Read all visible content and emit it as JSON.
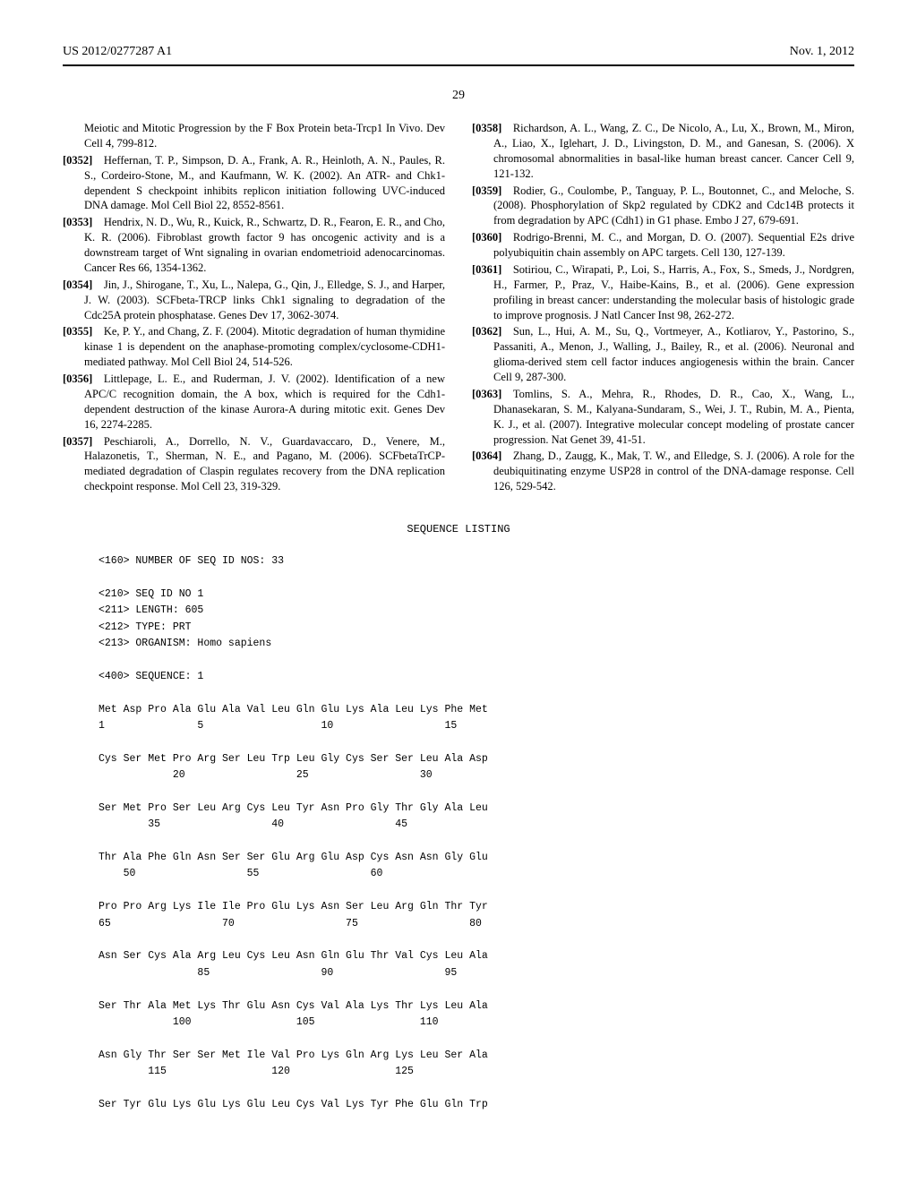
{
  "header": {
    "pub_number": "US 2012/0277287 A1",
    "date": "Nov. 1, 2012"
  },
  "page_number": "29",
  "left_column": [
    {
      "prefix": "",
      "num": "",
      "text": "Meiotic and Mitotic Progression by the F Box Protein beta-Trcp1 In Vivo. Dev Cell 4, 799-812."
    },
    {
      "prefix": "[0352]",
      "text": "Heffernan, T. P., Simpson, D. A., Frank, A. R., Heinloth, A. N., Paules, R. S., Cordeiro-Stone, M., and Kaufmann, W. K. (2002). An ATR- and Chk1-dependent S checkpoint inhibits replicon initiation following UVC-induced DNA damage. Mol Cell Biol 22, 8552-8561."
    },
    {
      "prefix": "[0353]",
      "text": "Hendrix, N. D., Wu, R., Kuick, R., Schwartz, D. R., Fearon, E. R., and Cho, K. R. (2006). Fibroblast growth factor 9 has oncogenic activity and is a downstream target of Wnt signaling in ovarian endometrioid adenocarcinomas. Cancer Res 66, 1354-1362."
    },
    {
      "prefix": "[0354]",
      "text": "Jin, J., Shirogane, T., Xu, L., Nalepa, G., Qin, J., Elledge, S. J., and Harper, J. W. (2003). SCFbeta-TRCP links Chk1 signaling to degradation of the Cdc25A protein phosphatase. Genes Dev 17, 3062-3074."
    },
    {
      "prefix": "[0355]",
      "text": "Ke, P. Y., and Chang, Z. F. (2004). Mitotic degradation of human thymidine kinase 1 is dependent on the anaphase-promoting complex/cyclosome-CDH1-mediated pathway. Mol Cell Biol 24, 514-526."
    },
    {
      "prefix": "[0356]",
      "text": "Littlepage, L. E., and Ruderman, J. V. (2002). Identification of a new APC/C recognition domain, the A box, which is required for the Cdh1-dependent destruction of the kinase Aurora-A during mitotic exit. Genes Dev 16, 2274-2285."
    },
    {
      "prefix": "[0357]",
      "text": "Peschiaroli, A., Dorrello, N. V., Guardavaccaro, D., Venere, M., Halazonetis, T., Sherman, N. E., and Pagano, M. (2006). SCFbetaTrCP-mediated degradation of Claspin regulates recovery from the DNA replication checkpoint response. Mol Cell 23, 319-329."
    }
  ],
  "right_column": [
    {
      "prefix": "[0358]",
      "text": "Richardson, A. L., Wang, Z. C., De Nicolo, A., Lu, X., Brown, M., Miron, A., Liao, X., Iglehart, J. D., Livingston, D. M., and Ganesan, S. (2006). X chromosomal abnormalities in basal-like human breast cancer. Cancer Cell 9, 121-132."
    },
    {
      "prefix": "[0359]",
      "text": "Rodier, G., Coulombe, P., Tanguay, P. L., Boutonnet, C., and Meloche, S. (2008). Phosphorylation of Skp2 regulated by CDK2 and Cdc14B protects it from degradation by APC (Cdh1) in G1 phase. Embo J 27, 679-691."
    },
    {
      "prefix": "[0360]",
      "text": "Rodrigo-Brenni, M. C., and Morgan, D. O. (2007). Sequential E2s drive polyubiquitin chain assembly on APC targets. Cell 130, 127-139."
    },
    {
      "prefix": "[0361]",
      "text": "Sotiriou, C., Wirapati, P., Loi, S., Harris, A., Fox, S., Smeds, J., Nordgren, H., Farmer, P., Praz, V., Haibe-Kains, B., et al. (2006). Gene expression profiling in breast cancer: understanding the molecular basis of histologic grade to improve prognosis. J Natl Cancer Inst 98, 262-272."
    },
    {
      "prefix": "[0362]",
      "text": "Sun, L., Hui, A. M., Su, Q., Vortmeyer, A., Kotliarov, Y., Pastorino, S., Passaniti, A., Menon, J., Walling, J., Bailey, R., et al. (2006). Neuronal and glioma-derived stem cell factor induces angiogenesis within the brain. Cancer Cell 9, 287-300."
    },
    {
      "prefix": "[0363]",
      "text": "Tomlins, S. A., Mehra, R., Rhodes, D. R., Cao, X., Wang, L., Dhanasekaran, S. M., Kalyana-Sundaram, S., Wei, J. T., Rubin, M. A., Pienta, K. J., et al. (2007). Integrative molecular concept modeling of prostate cancer progression. Nat Genet 39, 41-51."
    },
    {
      "prefix": "[0364]",
      "text": "Zhang, D., Zaugg, K., Mak, T. W., and Elledge, S. J. (2006). A role for the deubiquitinating enzyme USP28 in control of the DNA-damage response. Cell 126, 529-542."
    }
  ],
  "seq_title": "SEQUENCE LISTING",
  "seq_body": "<160> NUMBER OF SEQ ID NOS: 33\n\n<210> SEQ ID NO 1\n<211> LENGTH: 605\n<212> TYPE: PRT\n<213> ORGANISM: Homo sapiens\n\n<400> SEQUENCE: 1\n\nMet Asp Pro Ala Glu Ala Val Leu Gln Glu Lys Ala Leu Lys Phe Met\n1               5                   10                  15\n\nCys Ser Met Pro Arg Ser Leu Trp Leu Gly Cys Ser Ser Leu Ala Asp\n            20                  25                  30\n\nSer Met Pro Ser Leu Arg Cys Leu Tyr Asn Pro Gly Thr Gly Ala Leu\n        35                  40                  45\n\nThr Ala Phe Gln Asn Ser Ser Glu Arg Glu Asp Cys Asn Asn Gly Glu\n    50                  55                  60\n\nPro Pro Arg Lys Ile Ile Pro Glu Lys Asn Ser Leu Arg Gln Thr Tyr\n65                  70                  75                  80\n\nAsn Ser Cys Ala Arg Leu Cys Leu Asn Gln Glu Thr Val Cys Leu Ala\n                85                  90                  95\n\nSer Thr Ala Met Lys Thr Glu Asn Cys Val Ala Lys Thr Lys Leu Ala\n            100                 105                 110\n\nAsn Gly Thr Ser Ser Met Ile Val Pro Lys Gln Arg Lys Leu Ser Ala\n        115                 120                 125\n\nSer Tyr Glu Lys Glu Lys Glu Leu Cys Val Lys Tyr Phe Glu Gln Trp"
}
